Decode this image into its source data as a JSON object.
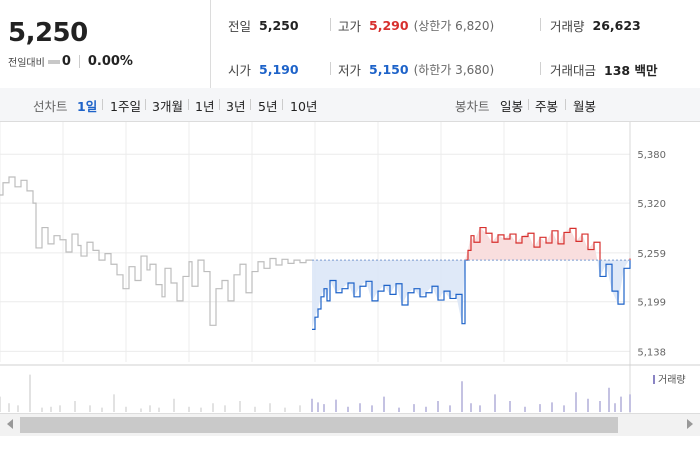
{
  "quote": {
    "price": "5,250",
    "change_label": "전일대비",
    "change_value": "0",
    "change_pct": "0.00%",
    "stats": [
      {
        "label": "전일",
        "value": "5,250",
        "sub": "",
        "color": "#222222"
      },
      {
        "label": "고가",
        "value": "5,290",
        "sub": "(상한가 6,820)",
        "color": "#d7302e"
      },
      {
        "label": "거래량",
        "value": "26,623",
        "sub": "",
        "color": "#222222"
      },
      {
        "label": "시가",
        "value": "5,190",
        "sub": "",
        "color": "#1e63c9"
      },
      {
        "label": "저가",
        "value": "5,150",
        "sub": "(하한가 3,680)",
        "color": "#1e63c9"
      },
      {
        "label": "거래대금",
        "value": "138 백만",
        "sub": "",
        "color": "#222222"
      }
    ]
  },
  "tabs": {
    "line_label": "선차트",
    "line_periods": [
      "1일",
      "1주일",
      "3개월",
      "1년",
      "3년",
      "5년",
      "10년"
    ],
    "selected": "1일",
    "candle_label": "봉차트",
    "candle_periods": [
      "일봉",
      "주봉",
      "월봉"
    ]
  },
  "scrollbar": {
    "left_icon": "arrow-left-icon",
    "right_icon": "arrow-right-icon"
  },
  "colors": {
    "up": "#d7302e",
    "down": "#1e63c9",
    "inactive": "#bdbdbd",
    "baseline_fill": "#dbe7f7",
    "up_fill": "#f9dede",
    "volume": "#8a84c4"
  },
  "chart_data": {
    "type": "line",
    "title": "",
    "xlabel": "",
    "ylabel": "",
    "y_ticks": [
      "5,380",
      "5,320",
      "5,259",
      "5,199",
      "5,138"
    ],
    "y_tick_values": [
      5380,
      5320,
      5259,
      5199,
      5138
    ],
    "ylim": [
      5125,
      5395
    ],
    "reference_price": 5250,
    "grid": true,
    "series": [
      {
        "segment": "previous",
        "x": [
          0,
          1,
          3,
          5,
          7,
          9,
          11,
          12,
          14,
          16,
          18,
          20,
          22,
          24,
          26,
          27,
          29,
          31,
          33,
          35,
          37,
          39,
          41,
          43,
          45,
          47,
          49,
          50,
          52,
          54,
          55,
          57,
          59,
          61,
          63,
          64,
          66,
          68,
          70,
          72,
          74,
          76,
          78,
          80,
          82,
          84,
          86,
          88,
          90,
          92,
          94,
          96,
          98,
          100,
          102,
          104
        ],
        "y": [
          5330,
          5345,
          5352,
          5340,
          5348,
          5335,
          5320,
          5265,
          5290,
          5270,
          5280,
          5275,
          5260,
          5282,
          5268,
          5255,
          5272,
          5262,
          5250,
          5258,
          5245,
          5232,
          5215,
          5242,
          5225,
          5255,
          5238,
          5245,
          5220,
          5205,
          5240,
          5222,
          5200,
          5230,
          5248,
          5218,
          5250,
          5236,
          5170,
          5215,
          5225,
          5200,
          5232,
          5245,
          5210,
          5236,
          5248,
          5240,
          5252,
          5244,
          5251,
          5246,
          5250,
          5247,
          5250,
          5250
        ]
      },
      {
        "segment": "today",
        "x": [
          104,
          105,
          106,
          107,
          108,
          109,
          110,
          112,
          114,
          116,
          118,
          120,
          122,
          124,
          126,
          128,
          130,
          132,
          134,
          136,
          138,
          140,
          142,
          144,
          146,
          148,
          150,
          152,
          154,
          155,
          156,
          157,
          158,
          160,
          162,
          164,
          166,
          168,
          170,
          172,
          174,
          176,
          178,
          180,
          182,
          184,
          186,
          188,
          190,
          192,
          194,
          196,
          198,
          200,
          202,
          204,
          206,
          208,
          210
        ],
        "y": [
          5165,
          5180,
          5190,
          5205,
          5215,
          5200,
          5225,
          5210,
          5215,
          5222,
          5205,
          5218,
          5224,
          5200,
          5212,
          5219,
          5208,
          5221,
          5195,
          5210,
          5215,
          5205,
          5210,
          5218,
          5201,
          5212,
          5203,
          5208,
          5172,
          5250,
          5262,
          5280,
          5272,
          5290,
          5283,
          5272,
          5281,
          5276,
          5282,
          5271,
          5279,
          5283,
          5266,
          5278,
          5271,
          5286,
          5270,
          5284,
          5289,
          5273,
          5282,
          5263,
          5272,
          5230,
          5245,
          5212,
          5196,
          5240,
          5252
        ]
      }
    ],
    "volume": {
      "ylim": [
        0,
        100
      ],
      "legend": "거래량",
      "x": [
        0,
        3,
        6,
        10,
        14,
        17,
        20,
        25,
        30,
        34,
        38,
        42,
        47,
        50,
        53,
        58,
        63,
        67,
        71,
        75,
        80,
        85,
        90,
        95,
        100,
        104,
        106,
        108,
        112,
        116,
        120,
        124,
        128,
        133,
        138,
        142,
        146,
        150,
        154,
        157,
        160,
        165,
        170,
        175,
        180,
        184,
        188,
        192,
        196,
        200,
        203,
        205,
        207,
        210
      ],
      "values": [
        35,
        20,
        15,
        85,
        10,
        12,
        15,
        25,
        15,
        10,
        40,
        12,
        8,
        15,
        10,
        30,
        12,
        10,
        20,
        15,
        25,
        12,
        20,
        10,
        15,
        30,
        22,
        18,
        28,
        12,
        20,
        15,
        35,
        10,
        18,
        12,
        25,
        15,
        70,
        20,
        15,
        40,
        25,
        12,
        18,
        22,
        15,
        45,
        30,
        25,
        55,
        20,
        35,
        40
      ]
    }
  }
}
